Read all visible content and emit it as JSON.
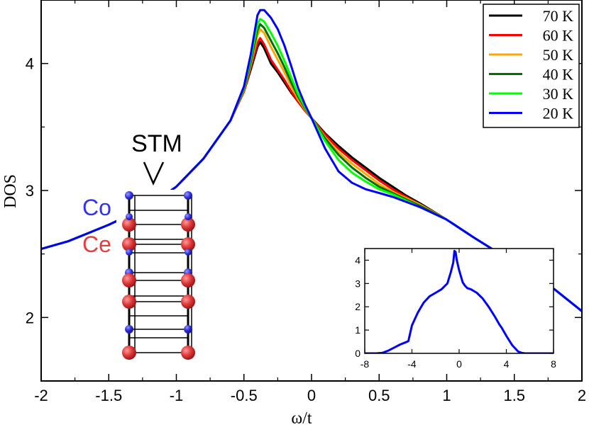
{
  "chart_data": [
    {
      "type": "line",
      "xlabel": "ω/t",
      "ylabel": "DOS",
      "xlim": [
        -2,
        2
      ],
      "ylim": [
        1.5,
        4.5
      ],
      "xticks": [
        -2,
        -1.5,
        -1,
        -0.5,
        0,
        0.5,
        1,
        1.5,
        2
      ],
      "xtick_labels": [
        "-2",
        "-1.5",
        "-1",
        "-0.5",
        "0",
        "0.5",
        "1",
        "1.5",
        "2"
      ],
      "yticks": [
        2,
        3,
        4
      ],
      "ytick_labels": [
        "2",
        "3",
        "4"
      ],
      "legend_position": "top-right",
      "series": [
        {
          "name": "70 K",
          "color": "#000000",
          "x": [
            -2.0,
            -1.8,
            -1.5,
            -1.2,
            -1.0,
            -0.8,
            -0.6,
            -0.5,
            -0.45,
            -0.4,
            -0.38,
            -0.35,
            -0.3,
            -0.25,
            -0.2,
            -0.15,
            -0.1,
            -0.05,
            0.0,
            0.1,
            0.2,
            0.3,
            0.4,
            0.5,
            0.6,
            0.7,
            0.8,
            1.0,
            1.2,
            1.5,
            1.8,
            2.0
          ],
          "values": [
            2.54,
            2.6,
            2.73,
            2.88,
            3.03,
            3.25,
            3.55,
            3.78,
            3.95,
            4.13,
            4.17,
            4.12,
            4.0,
            3.93,
            3.85,
            3.77,
            3.7,
            3.63,
            3.57,
            3.45,
            3.35,
            3.26,
            3.18,
            3.1,
            3.03,
            2.96,
            2.9,
            2.77,
            2.63,
            2.43,
            2.22,
            2.05
          ]
        },
        {
          "name": "60 K",
          "color": "#ff0000",
          "x": [
            -2.0,
            -1.8,
            -1.5,
            -1.2,
            -1.0,
            -0.8,
            -0.6,
            -0.5,
            -0.45,
            -0.4,
            -0.38,
            -0.35,
            -0.3,
            -0.25,
            -0.2,
            -0.15,
            -0.1,
            -0.05,
            0.0,
            0.1,
            0.2,
            0.3,
            0.4,
            0.5,
            0.6,
            0.7,
            0.8,
            1.0,
            1.2,
            1.5,
            1.8,
            2.0
          ],
          "values": [
            2.54,
            2.6,
            2.73,
            2.88,
            3.03,
            3.25,
            3.55,
            3.78,
            3.97,
            4.16,
            4.2,
            4.15,
            4.03,
            3.95,
            3.87,
            3.78,
            3.7,
            3.63,
            3.57,
            3.44,
            3.33,
            3.24,
            3.16,
            3.08,
            3.01,
            2.95,
            2.89,
            2.77,
            2.63,
            2.43,
            2.22,
            2.05
          ]
        },
        {
          "name": "50 K",
          "color": "#ffa500",
          "x": [
            -2.0,
            -1.8,
            -1.5,
            -1.2,
            -1.0,
            -0.8,
            -0.6,
            -0.5,
            -0.45,
            -0.4,
            -0.38,
            -0.35,
            -0.3,
            -0.25,
            -0.2,
            -0.15,
            -0.1,
            -0.05,
            0.0,
            0.1,
            0.2,
            0.3,
            0.4,
            0.5,
            0.6,
            0.7,
            0.8,
            1.0,
            1.2,
            1.5,
            1.8,
            2.0
          ],
          "values": [
            2.54,
            2.6,
            2.73,
            2.88,
            3.03,
            3.25,
            3.55,
            3.79,
            3.99,
            4.22,
            4.27,
            4.24,
            4.13,
            4.03,
            3.93,
            3.82,
            3.72,
            3.64,
            3.57,
            3.42,
            3.3,
            3.21,
            3.13,
            3.05,
            2.99,
            2.94,
            2.89,
            2.77,
            2.63,
            2.43,
            2.22,
            2.05
          ]
        },
        {
          "name": "40 K",
          "color": "#007000",
          "x": [
            -2.0,
            -1.8,
            -1.5,
            -1.2,
            -1.0,
            -0.8,
            -0.6,
            -0.5,
            -0.45,
            -0.4,
            -0.38,
            -0.35,
            -0.3,
            -0.25,
            -0.2,
            -0.15,
            -0.1,
            -0.05,
            0.0,
            0.1,
            0.2,
            0.3,
            0.4,
            0.5,
            0.6,
            0.7,
            0.8,
            1.0,
            1.2,
            1.5,
            1.8,
            2.0
          ],
          "values": [
            2.54,
            2.6,
            2.73,
            2.88,
            3.03,
            3.25,
            3.55,
            3.8,
            4.01,
            4.26,
            4.31,
            4.28,
            4.18,
            4.08,
            3.97,
            3.85,
            3.74,
            3.65,
            3.57,
            3.41,
            3.28,
            3.18,
            3.1,
            3.03,
            2.98,
            2.93,
            2.88,
            2.77,
            2.63,
            2.43,
            2.22,
            2.05
          ]
        },
        {
          "name": "30 K",
          "color": "#00ff00",
          "x": [
            -2.0,
            -1.8,
            -1.5,
            -1.2,
            -1.0,
            -0.8,
            -0.6,
            -0.5,
            -0.45,
            -0.4,
            -0.38,
            -0.35,
            -0.3,
            -0.25,
            -0.2,
            -0.15,
            -0.1,
            -0.05,
            0.0,
            0.1,
            0.2,
            0.3,
            0.4,
            0.5,
            0.6,
            0.7,
            0.8,
            1.0,
            1.2,
            1.5,
            1.8,
            2.0
          ],
          "values": [
            2.54,
            2.6,
            2.73,
            2.88,
            3.03,
            3.25,
            3.55,
            3.81,
            4.04,
            4.31,
            4.35,
            4.33,
            4.24,
            4.14,
            4.02,
            3.89,
            3.76,
            3.66,
            3.57,
            3.39,
            3.24,
            3.14,
            3.07,
            3.01,
            2.97,
            2.92,
            2.87,
            2.77,
            2.63,
            2.43,
            2.22,
            2.05
          ]
        },
        {
          "name": "20 K",
          "color": "#0000ff",
          "x": [
            -2.0,
            -1.8,
            -1.5,
            -1.2,
            -1.0,
            -0.8,
            -0.6,
            -0.5,
            -0.45,
            -0.4,
            -0.38,
            -0.35,
            -0.3,
            -0.25,
            -0.2,
            -0.15,
            -0.1,
            -0.05,
            0.0,
            0.1,
            0.2,
            0.3,
            0.4,
            0.5,
            0.6,
            0.7,
            0.8,
            1.0,
            1.2,
            1.5,
            1.8,
            2.0
          ],
          "values": [
            2.54,
            2.6,
            2.73,
            2.88,
            3.03,
            3.25,
            3.55,
            3.82,
            4.07,
            4.38,
            4.42,
            4.42,
            4.36,
            4.27,
            4.14,
            3.98,
            3.81,
            3.68,
            3.57,
            3.33,
            3.15,
            3.06,
            3.01,
            2.98,
            2.95,
            2.91,
            2.87,
            2.77,
            2.63,
            2.43,
            2.22,
            2.05
          ]
        }
      ]
    },
    {
      "type": "line",
      "name": "inset",
      "xlim": [
        -8,
        8
      ],
      "ylim": [
        0,
        4.5
      ],
      "xticks": [
        -8,
        -4,
        0,
        4,
        8
      ],
      "xtick_labels": [
        "-8",
        "-4",
        "0",
        "4",
        "8"
      ],
      "yticks": [
        0,
        1,
        2,
        3,
        4
      ],
      "ytick_labels": [
        "0",
        "1",
        "2",
        "3",
        "4"
      ],
      "series": [
        {
          "color": "#0000ff",
          "x": [
            -8.0,
            -7.0,
            -6.5,
            -6.0,
            -5.5,
            -5.0,
            -4.5,
            -4.3,
            -4.0,
            -3.5,
            -3.0,
            -2.5,
            -2.0,
            -1.5,
            -1.0,
            -0.7,
            -0.5,
            -0.4,
            -0.3,
            -0.2,
            0.0,
            0.3,
            0.5,
            0.7,
            1.0,
            1.5,
            2.0,
            2.5,
            3.0,
            3.4,
            3.6,
            4.0,
            4.5,
            5.0,
            5.3,
            5.6,
            6.0,
            7.0,
            8.0
          ],
          "values": [
            0.0,
            0.0,
            0.02,
            0.12,
            0.25,
            0.38,
            0.48,
            0.53,
            1.2,
            1.75,
            2.18,
            2.45,
            2.6,
            2.75,
            3.0,
            3.5,
            3.9,
            4.4,
            4.35,
            4.0,
            3.57,
            3.05,
            2.9,
            2.8,
            2.75,
            2.6,
            2.35,
            2.0,
            1.6,
            1.25,
            1.1,
            0.75,
            0.35,
            0.08,
            0.02,
            0.0,
            0.0,
            0.0,
            0.0
          ]
        }
      ]
    }
  ],
  "illustration": {
    "tip_label": "STM",
    "co_label": "Co",
    "ce_label": "Ce",
    "co_color": "#3333ee",
    "ce_color": "#e04040",
    "atom_rows": [
      "Co",
      "Ce",
      "Ce",
      "Co",
      "Ce",
      "Ce",
      "Co",
      "Ce"
    ]
  }
}
